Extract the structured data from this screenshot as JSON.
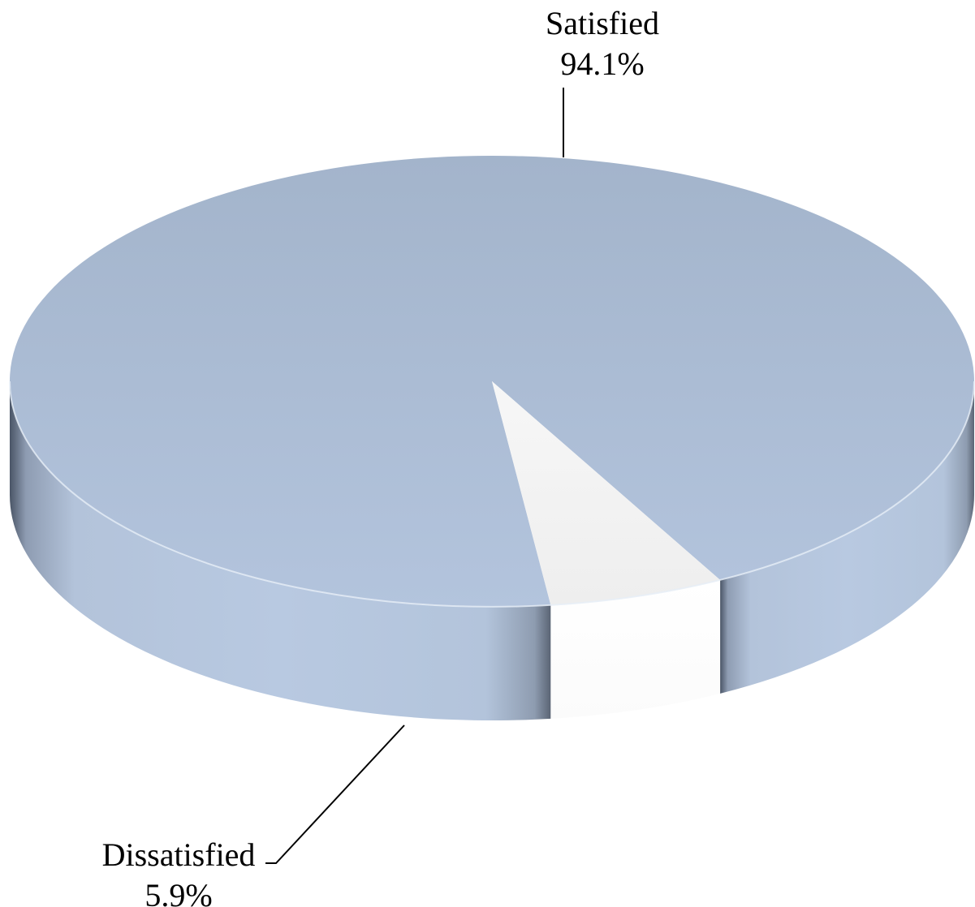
{
  "chart_data": {
    "type": "pie",
    "style": "3d",
    "slices": [
      {
        "name": "Satisfied",
        "value": 94.1,
        "label": "94.1%",
        "color": "#b0c1d8"
      },
      {
        "name": "Dissatisfied",
        "value": 5.9,
        "label": "5.9%",
        "color": "#f0f0f0"
      }
    ],
    "legend": "none",
    "label_style": "outside-with-leader-lines"
  }
}
